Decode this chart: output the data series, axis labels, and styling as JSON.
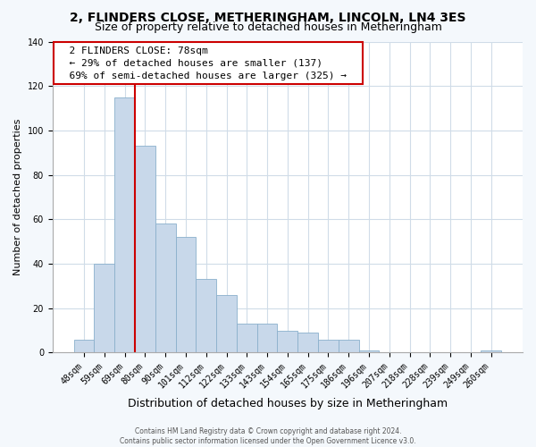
{
  "title": "2, FLINDERS CLOSE, METHERINGHAM, LINCOLN, LN4 3ES",
  "subtitle": "Size of property relative to detached houses in Metheringham",
  "xlabel": "Distribution of detached houses by size in Metheringham",
  "ylabel": "Number of detached properties",
  "bar_labels": [
    "48sqm",
    "59sqm",
    "69sqm",
    "80sqm",
    "90sqm",
    "101sqm",
    "112sqm",
    "122sqm",
    "133sqm",
    "143sqm",
    "154sqm",
    "165sqm",
    "175sqm",
    "186sqm",
    "196sqm",
    "207sqm",
    "218sqm",
    "228sqm",
    "239sqm",
    "249sqm",
    "260sqm"
  ],
  "bar_values": [
    6,
    40,
    115,
    93,
    58,
    52,
    33,
    26,
    13,
    13,
    10,
    9,
    6,
    6,
    1,
    0,
    0,
    0,
    0,
    0,
    1
  ],
  "bar_color": "#c8d8ea",
  "bar_edge_color": "#8ab0cc",
  "vline_color": "#cc0000",
  "vline_pos": 2.5,
  "ylim": [
    0,
    140
  ],
  "yticks": [
    0,
    20,
    40,
    60,
    80,
    100,
    120,
    140
  ],
  "annotation_title": "2 FLINDERS CLOSE: 78sqm",
  "annotation_line1": "← 29% of detached houses are smaller (137)",
  "annotation_line2": "69% of semi-detached houses are larger (325) →",
  "annotation_box_facecolor": "#ffffff",
  "annotation_box_edgecolor": "#cc0000",
  "footer1": "Contains HM Land Registry data © Crown copyright and database right 2024.",
  "footer2": "Contains public sector information licensed under the Open Government Licence v3.0.",
  "fig_facecolor": "#f4f8fc",
  "plot_facecolor": "#ffffff",
  "grid_color": "#d0dce8",
  "title_fontsize": 10,
  "subtitle_fontsize": 9,
  "ylabel_fontsize": 8,
  "xlabel_fontsize": 9,
  "tick_fontsize": 7,
  "annot_fontsize": 8,
  "footer_fontsize": 5.5
}
